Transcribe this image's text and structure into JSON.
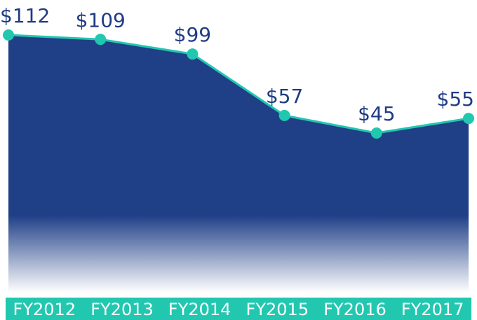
{
  "chart_data": {
    "type": "area",
    "categories": [
      "FY2012",
      "FY2013",
      "FY2014",
      "FY2015",
      "FY2016",
      "FY2017"
    ],
    "values": [
      112,
      109,
      99,
      57,
      45,
      55
    ],
    "value_labels": [
      "$112",
      "$109",
      "$99",
      "$57",
      "$45",
      "$55"
    ],
    "color": "#1f3f87",
    "line_color": "#22c7b0"
  }
}
